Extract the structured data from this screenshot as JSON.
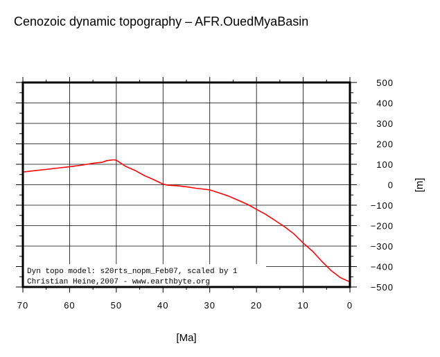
{
  "chart_data": {
    "type": "line",
    "title": "Cenozoic dynamic topography – AFR.OuedMyaBasin",
    "xlabel": "[Ma]",
    "ylabel": "[m]",
    "xlim": [
      70,
      0
    ],
    "ylim": [
      -500,
      500
    ],
    "x_reversed": true,
    "grid": true,
    "xticks": [
      70,
      60,
      50,
      40,
      30,
      20,
      10,
      0
    ],
    "yticks": [
      500,
      400,
      300,
      200,
      100,
      0,
      -100,
      -200,
      -300,
      -400,
      -500
    ],
    "line_color": "#ff0000",
    "series": [
      {
        "x": [
          70,
          67,
          65,
          62,
          60,
          57,
          55,
          53,
          52,
          50.5,
          50,
          48,
          46,
          44,
          42,
          40,
          39,
          37,
          35,
          33,
          30,
          28,
          26,
          24,
          22,
          20,
          18,
          16,
          14,
          12,
          10,
          8,
          6,
          4,
          2,
          0
        ],
        "y": [
          62,
          70,
          75,
          83,
          88,
          97,
          105,
          110,
          118,
          122,
          120,
          90,
          70,
          45,
          25,
          3,
          -2,
          -5,
          -10,
          -17,
          -25,
          -40,
          -55,
          -75,
          -95,
          -120,
          -145,
          -175,
          -205,
          -240,
          -285,
          -325,
          -375,
          -420,
          -455,
          -475
        ]
      }
    ],
    "annotations": [
      "Dyn topo model: s20rts_nopm_Feb07, scaled by 1",
      "Christian Heine,2007 - www.earthbyte.org"
    ]
  }
}
